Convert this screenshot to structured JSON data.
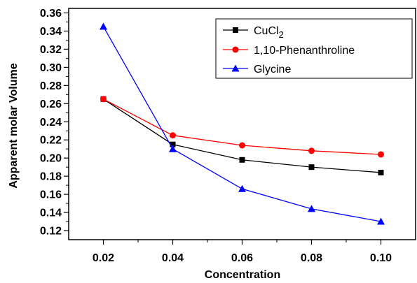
{
  "chart_data": {
    "type": "line",
    "xlabel": "Concentration",
    "ylabel": "Apparent molar Volume",
    "x": [
      0.02,
      0.04,
      0.06,
      0.08,
      0.1
    ],
    "xticks": [
      "0.02",
      "0.04",
      "0.06",
      "0.08",
      "0.10"
    ],
    "xlim": [
      0.01,
      0.11
    ],
    "ylim": [
      0.11,
      0.365
    ],
    "yticks": [
      "0.12",
      "0.14",
      "0.16",
      "0.18",
      "0.20",
      "0.22",
      "0.24",
      "0.26",
      "0.28",
      "0.30",
      "0.32",
      "0.34",
      "0.36"
    ],
    "grid": false,
    "legend_position": "top-right",
    "series": [
      {
        "name": "CuCl",
        "name_subscript": "2",
        "color": "#000000",
        "marker": "square",
        "values": [
          0.265,
          0.215,
          0.198,
          0.19,
          0.184
        ]
      },
      {
        "name": "1,10-Phenanthroline",
        "color": "#ff0000",
        "marker": "circle",
        "values": [
          0.265,
          0.225,
          0.214,
          0.208,
          0.204
        ]
      },
      {
        "name": "Glycine",
        "color": "#0000ff",
        "marker": "triangle",
        "values": [
          0.345,
          0.21,
          0.166,
          0.144,
          0.13
        ]
      }
    ]
  }
}
